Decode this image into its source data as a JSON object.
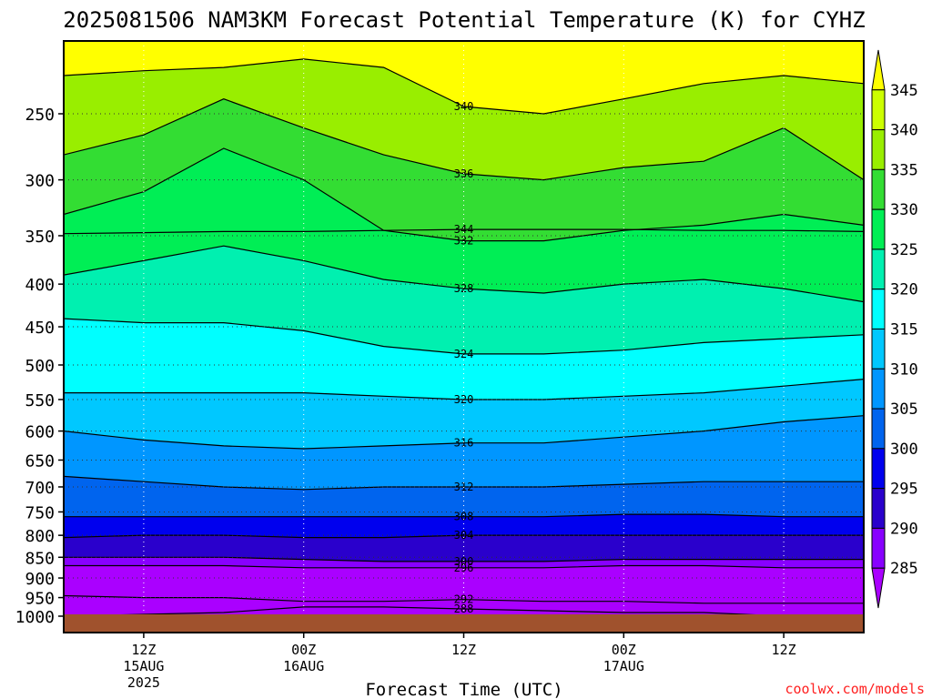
{
  "chart_data": {
    "type": "heatmap",
    "title": "2025081506 NAM3KM Forecast Potential Temperature (K) for CYHZ",
    "xlabel": "Forecast Time (UTC)",
    "ylabel": "",
    "credit": "coolwx.com/models",
    "x_ticks": [
      {
        "hour": 12,
        "lines": [
          "12Z",
          "15AUG",
          "2025"
        ]
      },
      {
        "hour": 24,
        "lines": [
          "00Z",
          "16AUG"
        ]
      },
      {
        "hour": 36,
        "lines": [
          "12Z"
        ]
      },
      {
        "hour": 48,
        "lines": [
          "00Z",
          "17AUG"
        ]
      },
      {
        "hour": 60,
        "lines": [
          "12Z"
        ]
      }
    ],
    "xlim": [
      6,
      66
    ],
    "y_ticks": [
      250,
      300,
      350,
      400,
      450,
      500,
      550,
      600,
      650,
      700,
      750,
      800,
      850,
      900,
      950,
      1000
    ],
    "ylim": [
      1000,
      200
    ],
    "y_scale": "log-pressure",
    "grid": "dotted",
    "colorbar": {
      "levels": [
        345,
        340,
        335,
        330,
        325,
        320,
        315,
        310,
        305,
        300,
        295,
        290,
        285
      ],
      "colors": [
        "#ffff00",
        "#ccff00",
        "#99ee00",
        "#33dd33",
        "#00ee55",
        "#00f0b0",
        "#00ffff",
        "#00c8ff",
        "#0096ff",
        "#0064ee",
        "#0000ee",
        "#2a00cc",
        "#8800ff",
        "#aa00ff"
      ]
    },
    "contour_series": [
      {
        "label": "344",
        "values": [
          348,
          347,
          346,
          346,
          345,
          344,
          344,
          344,
          345,
          345,
          346
        ]
      },
      {
        "label": "340",
        "values": [
          225,
          222,
          220,
          215,
          220,
          245,
          250,
          240,
          230,
          225,
          230
        ]
      },
      {
        "label": "336",
        "values": [
          280,
          265,
          240,
          260,
          280,
          295,
          300,
          290,
          285,
          260,
          300
        ]
      },
      {
        "label": "332",
        "values": [
          330,
          310,
          275,
          300,
          345,
          355,
          355,
          345,
          340,
          330,
          340
        ]
      },
      {
        "label": "328",
        "values": [
          390,
          375,
          360,
          375,
          395,
          405,
          410,
          400,
          395,
          405,
          420
        ]
      },
      {
        "label": "324",
        "values": [
          440,
          445,
          445,
          455,
          475,
          485,
          485,
          480,
          470,
          465,
          460
        ]
      },
      {
        "label": "320",
        "values": [
          540,
          540,
          540,
          540,
          545,
          550,
          550,
          545,
          540,
          530,
          520
        ]
      },
      {
        "label": "316",
        "values": [
          600,
          615,
          625,
          630,
          625,
          620,
          620,
          610,
          600,
          585,
          575
        ]
      },
      {
        "label": "312",
        "values": [
          680,
          690,
          700,
          705,
          700,
          700,
          700,
          695,
          690,
          690,
          690
        ]
      },
      {
        "label": "308",
        "values": [
          760,
          760,
          760,
          760,
          760,
          760,
          760,
          755,
          755,
          760,
          760
        ]
      },
      {
        "label": "304",
        "values": [
          805,
          800,
          800,
          805,
          805,
          800,
          800,
          800,
          800,
          800,
          800
        ]
      },
      {
        "label": "300",
        "values": [
          850,
          850,
          850,
          855,
          860,
          860,
          860,
          855,
          855,
          855,
          855
        ]
      },
      {
        "label": "296",
        "values": [
          870,
          870,
          870,
          875,
          875,
          875,
          875,
          870,
          870,
          875,
          875
        ]
      },
      {
        "label": "292",
        "values": [
          945,
          950,
          950,
          960,
          960,
          955,
          960,
          960,
          965,
          965,
          965
        ]
      },
      {
        "label": "288",
        "values": [
          1000,
          995,
          990,
          975,
          975,
          980,
          985,
          990,
          990,
          1000,
          1000
        ]
      }
    ],
    "contour_x": [
      6,
      12,
      18,
      24,
      30,
      36,
      42,
      48,
      54,
      60,
      66
    ]
  }
}
